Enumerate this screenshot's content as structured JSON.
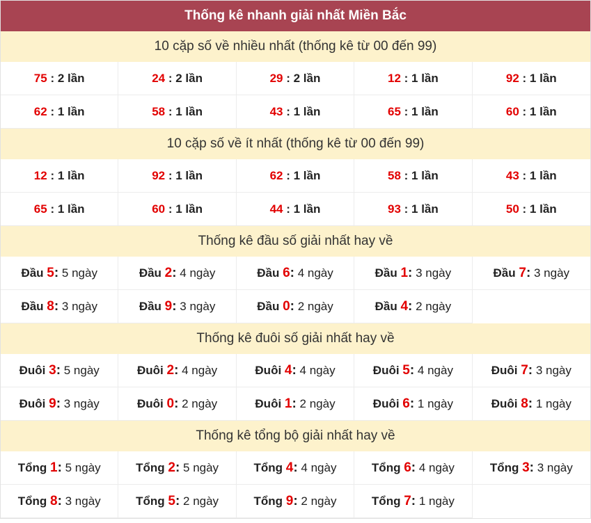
{
  "title": "Thống kê nhanh giải nhất Miền Bắc",
  "colors": {
    "header": "#a84452",
    "subheader": "#fdf2cc",
    "number": "#e20000"
  },
  "sections": [
    {
      "heading": "10 cặp số về nhiều nhất (thống kê từ 00 đến 99)",
      "type": "pair",
      "items": [
        {
          "num": "75",
          "sep": " : ",
          "value": "2 lần"
        },
        {
          "num": "24",
          "sep": " : ",
          "value": "2 lần"
        },
        {
          "num": "29",
          "sep": " : ",
          "value": "2 lần"
        },
        {
          "num": "12",
          "sep": " : ",
          "value": "1 lần"
        },
        {
          "num": "92",
          "sep": " : ",
          "value": "1 lần"
        },
        {
          "num": "62",
          "sep": " : ",
          "value": "1 lần"
        },
        {
          "num": "58",
          "sep": " : ",
          "value": "1 lần"
        },
        {
          "num": "43",
          "sep": " : ",
          "value": "1 lần"
        },
        {
          "num": "65",
          "sep": " : ",
          "value": "1 lần"
        },
        {
          "num": "60",
          "sep": " : ",
          "value": "1 lần"
        }
      ]
    },
    {
      "heading": "10 cặp số về ít nhất (thống kê từ 00 đến 99)",
      "type": "pair",
      "items": [
        {
          "num": "12",
          "sep": " : ",
          "value": "1 lần"
        },
        {
          "num": "92",
          "sep": " : ",
          "value": "1 lần"
        },
        {
          "num": "62",
          "sep": " : ",
          "value": "1 lần"
        },
        {
          "num": "58",
          "sep": " : ",
          "value": "1 lần"
        },
        {
          "num": "43",
          "sep": " : ",
          "value": "1 lần"
        },
        {
          "num": "65",
          "sep": " : ",
          "value": "1 lần"
        },
        {
          "num": "60",
          "sep": " : ",
          "value": "1 lần"
        },
        {
          "num": "44",
          "sep": " : ",
          "value": "1 lần"
        },
        {
          "num": "93",
          "sep": " : ",
          "value": "1 lần"
        },
        {
          "num": "50",
          "sep": " : ",
          "value": "1 lần"
        }
      ]
    },
    {
      "heading": "Thống kê đầu số giải nhất hay về",
      "type": "label",
      "items": [
        {
          "label": "Đầu ",
          "num": "5",
          "sep": ":",
          "value": " 5 ngày"
        },
        {
          "label": "Đầu ",
          "num": "2",
          "sep": ":",
          "value": " 4 ngày"
        },
        {
          "label": "Đầu ",
          "num": "6",
          "sep": ":",
          "value": " 4 ngày"
        },
        {
          "label": "Đầu ",
          "num": "1",
          "sep": ":",
          "value": " 3 ngày"
        },
        {
          "label": "Đầu ",
          "num": "7",
          "sep": ":",
          "value": " 3 ngày"
        },
        {
          "label": "Đầu ",
          "num": "8",
          "sep": ":",
          "value": " 3 ngày"
        },
        {
          "label": "Đầu ",
          "num": "9",
          "sep": ":",
          "value": " 3 ngày"
        },
        {
          "label": "Đầu ",
          "num": "0",
          "sep": ":",
          "value": " 2 ngày"
        },
        {
          "label": "Đầu ",
          "num": "4",
          "sep": ":",
          "value": " 2 ngày"
        }
      ]
    },
    {
      "heading": "Thống kê đuôi số giải nhất hay về",
      "type": "label",
      "items": [
        {
          "label": "Đuôi ",
          "num": "3",
          "sep": ":",
          "value": " 5 ngày"
        },
        {
          "label": "Đuôi ",
          "num": "2",
          "sep": ":",
          "value": " 4 ngày"
        },
        {
          "label": "Đuôi ",
          "num": "4",
          "sep": ":",
          "value": " 4 ngày"
        },
        {
          "label": "Đuôi ",
          "num": "5",
          "sep": ":",
          "value": " 4 ngày"
        },
        {
          "label": "Đuôi ",
          "num": "7",
          "sep": ":",
          "value": " 3 ngày"
        },
        {
          "label": "Đuôi ",
          "num": "9",
          "sep": ":",
          "value": " 3 ngày"
        },
        {
          "label": "Đuôi ",
          "num": "0",
          "sep": ":",
          "value": " 2 ngày"
        },
        {
          "label": "Đuôi ",
          "num": "1",
          "sep": ":",
          "value": " 2 ngày"
        },
        {
          "label": "Đuôi ",
          "num": "6",
          "sep": ":",
          "value": " 1 ngày"
        },
        {
          "label": "Đuôi ",
          "num": "8",
          "sep": ":",
          "value": " 1 ngày"
        }
      ]
    },
    {
      "heading": "Thống kê tổng bộ giải nhất hay về",
      "type": "label",
      "items": [
        {
          "label": "Tổng ",
          "num": "1",
          "sep": ":",
          "value": " 5 ngày"
        },
        {
          "label": "Tổng ",
          "num": "2",
          "sep": ":",
          "value": " 5 ngày"
        },
        {
          "label": "Tổng ",
          "num": "4",
          "sep": ":",
          "value": " 4 ngày"
        },
        {
          "label": "Tổng ",
          "num": "6",
          "sep": ":",
          "value": " 4 ngày"
        },
        {
          "label": "Tổng ",
          "num": "3",
          "sep": ":",
          "value": " 3 ngày"
        },
        {
          "label": "Tổng ",
          "num": "8",
          "sep": ":",
          "value": " 3 ngày"
        },
        {
          "label": "Tổng ",
          "num": "5",
          "sep": ":",
          "value": " 2 ngày"
        },
        {
          "label": "Tổng ",
          "num": "9",
          "sep": ":",
          "value": " 2 ngày"
        },
        {
          "label": "Tổng ",
          "num": "7",
          "sep": ":",
          "value": " 1 ngày"
        }
      ]
    }
  ]
}
